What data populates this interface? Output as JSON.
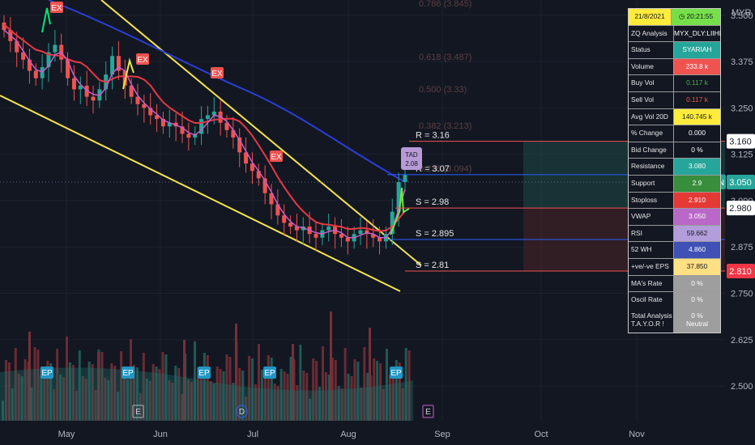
{
  "currency": "MYR",
  "ticker_tag": "LIIHEN",
  "price_axis": [
    "3.500",
    "3.375",
    "3.250",
    "3.125",
    "3.000",
    "2.875",
    "2.750",
    "2.625",
    "2.500"
  ],
  "price_pills": [
    {
      "value": "3.160",
      "color": "#ffffff",
      "text": "#131722"
    },
    {
      "value": "3.050",
      "color": "#26a69a",
      "text": "#ffffff"
    },
    {
      "value": "2.980",
      "color": "#ffffff",
      "text": "#131722"
    },
    {
      "value": "2.810",
      "color": "#f23645",
      "text": "#ffffff"
    }
  ],
  "time_axis": [
    "May",
    "Jun",
    "Jul",
    "Aug",
    "Sep",
    "Oct",
    "Nov"
  ],
  "fib_labels": [
    "0.786 (3.845)",
    "0.618 (3.487)",
    "0.500 (3.33)",
    "0.382 (3.213)",
    "0.236 (3.094)"
  ],
  "sr_labels": [
    "R = 3.16",
    "R = 3.07",
    "S = 2.98",
    "S = 2.895",
    "S = 2.81"
  ],
  "markers": {
    "ex": "EX",
    "ep": "EP",
    "event_e": "E",
    "event_d": "D",
    "tad_line1": "TAD",
    "tad_line2": "2.08"
  },
  "panel": {
    "date": "21/8/2021",
    "time": "20:21:55",
    "rows": [
      {
        "label": "ZQ Analysis",
        "value": "MYX_DLY:LIIHEN",
        "bg": "#131722",
        "fg": "#ffffff"
      },
      {
        "label": "Status",
        "value": "SYARIAH",
        "bg": "#26a69a",
        "fg": "#ffffff"
      },
      {
        "label": "Volume",
        "value": "233.8 k",
        "bg": "#ef5350",
        "fg": "#ffffff"
      },
      {
        "label": "Buy Vol",
        "value": "0.117 k",
        "bg": "#131722",
        "fg": "#4caf50"
      },
      {
        "label": "Sell Vol",
        "value": "0.117 k",
        "bg": "#131722",
        "fg": "#ef5350"
      },
      {
        "label": "Avg Vol 20D",
        "value": "140.745 k",
        "bg": "#ffeb3b",
        "fg": "#131722"
      },
      {
        "label": "% Change",
        "value": "0.000",
        "bg": "#131722",
        "fg": "#ffffff"
      },
      {
        "label": "Bid Change",
        "value": "0 %",
        "bg": "#131722",
        "fg": "#ffffff"
      },
      {
        "label": "Resistance",
        "value": "3.080",
        "bg": "#26a69a",
        "fg": "#ffffff"
      },
      {
        "label": "Support",
        "value": "2.9",
        "bg": "#388e3c",
        "fg": "#ffffff"
      },
      {
        "label": "Stoploss",
        "value": "2.910",
        "bg": "#e53935",
        "fg": "#ffffff"
      },
      {
        "label": "VWAP",
        "value": "3.050",
        "bg": "#ba68c8",
        "fg": "#ffffff"
      },
      {
        "label": "RSI",
        "value": "59.662",
        "bg": "#b39ddb",
        "fg": "#131722"
      },
      {
        "label": "52 WH",
        "value": "4.860",
        "bg": "#3f51b5",
        "fg": "#ffffff"
      },
      {
        "label": "+ve/-ve EPS",
        "value": "37.850",
        "bg": "#ffe082",
        "fg": "#131722"
      },
      {
        "label": "MA's Rate",
        "value": "0 %",
        "bg": "#9e9e9e",
        "fg": "#ffffff"
      },
      {
        "label": "Oscil Rate",
        "value": "0 %",
        "bg": "#9e9e9e",
        "fg": "#ffffff"
      }
    ],
    "last_label1": "Total Analysis",
    "last_label2": "T.A.Y.O.R !",
    "last_value1": "0 %",
    "last_value2": "Neutral"
  },
  "chart_data": {
    "type": "candlestick",
    "x": [
      "May",
      "Jun",
      "Jul",
      "Aug",
      "Sep",
      "Oct",
      "Nov"
    ],
    "ylim": [
      2.45,
      3.53
    ],
    "close_estimate": [
      3.46,
      3.43,
      3.4,
      3.38,
      3.35,
      3.33,
      3.36,
      3.4,
      3.42,
      3.38,
      3.33,
      3.3,
      3.31,
      3.28,
      3.27,
      3.3,
      3.34,
      3.39,
      3.35,
      3.31,
      3.28,
      3.26,
      3.25,
      3.23,
      3.22,
      3.2,
      3.21,
      3.2,
      3.18,
      3.17,
      3.18,
      3.22,
      3.23,
      3.24,
      3.21,
      3.19,
      3.17,
      3.13,
      3.1,
      3.08,
      3.06,
      3.02,
      2.99,
      2.96,
      2.94,
      2.93,
      2.92,
      2.93,
      2.91,
      2.9,
      2.92,
      2.93,
      2.91,
      2.9,
      2.89,
      2.91,
      2.92,
      2.91,
      2.9,
      2.89,
      2.91,
      2.97,
      3.05,
      3.07
    ],
    "levels": {
      "resistance_1": 3.16,
      "resistance_2": 3.07,
      "support_1": 2.98,
      "support_2": 2.895,
      "support_3": 2.81
    }
  }
}
